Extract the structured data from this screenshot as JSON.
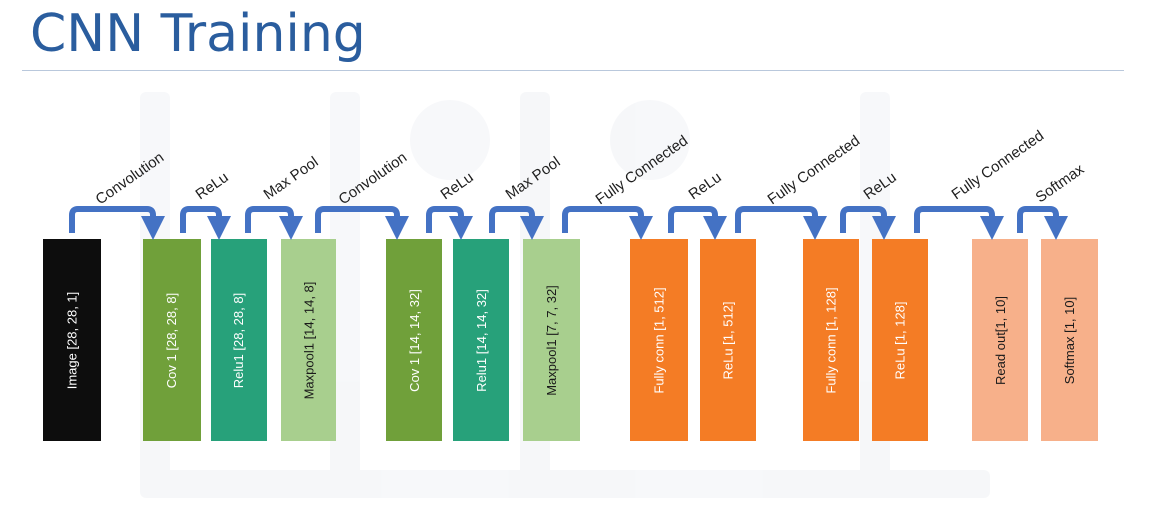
{
  "title": "CNN Training",
  "colors": {
    "title": "#2a5d9e",
    "arrow": "#4472c4",
    "black": "#0d0d0d",
    "green_dark": "#70a03a",
    "teal": "#27a17a",
    "green_light": "#a8cf8e",
    "orange": "#f47c25",
    "peach": "#f7b08a"
  },
  "layers": [
    {
      "label": "Image [28, 28, 1]",
      "color": "#0d0d0d",
      "text_color": "#ffffff"
    },
    {
      "label": "Cov 1  [28, 28, 8]",
      "color": "#70a03a",
      "text_color": "#ffffff"
    },
    {
      "label": "Relu1 [28, 28, 8]",
      "color": "#27a17a",
      "text_color": "#ffffff"
    },
    {
      "label": "Maxpool1 [14, 14, 8]",
      "color": "#a8cf8e",
      "text_color": "#1a1a1a"
    },
    {
      "label": "Cov 1  [14, 14, 32]",
      "color": "#70a03a",
      "text_color": "#ffffff"
    },
    {
      "label": "Relu1 [14, 14, 32]",
      "color": "#27a17a",
      "text_color": "#ffffff"
    },
    {
      "label": "Maxpool1 [7, 7, 32]",
      "color": "#a8cf8e",
      "text_color": "#1a1a1a"
    },
    {
      "label": "Fully conn  [1, 512]",
      "color": "#f47c25",
      "text_color": "#ffffff"
    },
    {
      "label": "ReLu  [1, 512]",
      "color": "#f47c25",
      "text_color": "#ffffff"
    },
    {
      "label": "Fully conn  [1, 128]",
      "color": "#f47c25",
      "text_color": "#ffffff"
    },
    {
      "label": "ReLu  [1, 128]",
      "color": "#f47c25",
      "text_color": "#ffffff"
    },
    {
      "label": "Read out[1, 10]",
      "color": "#f7b08a",
      "text_color": "#1a1a1a"
    },
    {
      "label": "Softmax [1, 10]",
      "color": "#f7b08a",
      "text_color": "#1a1a1a"
    }
  ],
  "operations": [
    "Convolution",
    "ReLu",
    "Max Pool",
    "Convolution",
    "ReLu",
    "Max Pool",
    "Fully Connected",
    "ReLu",
    "Fully Connected",
    "ReLu",
    "Fully Connected",
    "Softmax"
  ]
}
